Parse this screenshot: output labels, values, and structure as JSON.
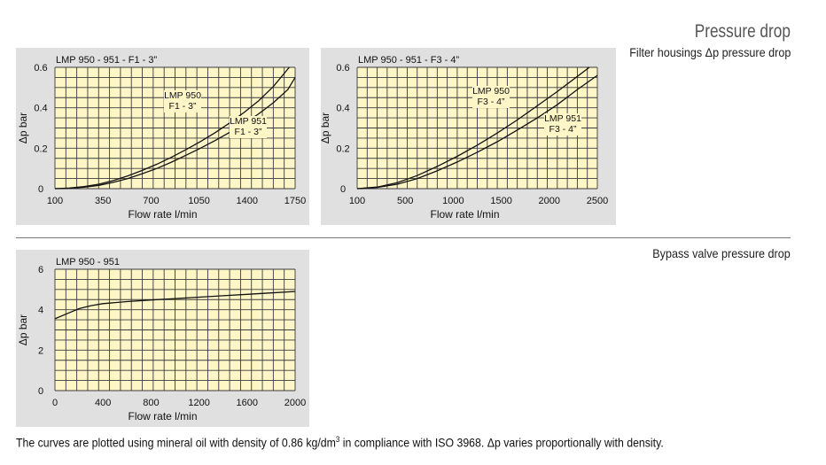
{
  "header": {
    "title": "Pressure drop",
    "subtitle": "Filter housings Δp pressure drop"
  },
  "bypass_label": "Bypass valve pressure drop",
  "footnote": {
    "before": "The curves are plotted using mineral oil with density of 0.86 kg/dm",
    "sup": "3",
    "after": " in compliance with ISO 3968. Δp varies proportionally with density."
  },
  "chart_data": [
    {
      "type": "line",
      "title": "LMP 950 - 951 - F1 - 3”",
      "xlabel": "Flow rate l/min",
      "ylabel": "Δp bar",
      "xlim": [
        100,
        1750
      ],
      "ylim": [
        0,
        0.6
      ],
      "x_ticks": [
        "100",
        "350",
        "700",
        "1050",
        "1400",
        "1750"
      ],
      "y_ticks": [
        "0",
        "0.2",
        "0.4",
        "0.6"
      ],
      "grid": true,
      "series": [
        {
          "name": "LMP 950 F1 - 3”",
          "label_lines": [
            "LMP 950",
            "F1 - 3”"
          ],
          "x": [
            100,
            200,
            300,
            400,
            500,
            600,
            700,
            800,
            900,
            1000,
            1100,
            1200,
            1300,
            1400,
            1500,
            1600,
            1710
          ],
          "y": [
            0,
            0.003,
            0.01,
            0.022,
            0.04,
            0.063,
            0.09,
            0.121,
            0.155,
            0.193,
            0.233,
            0.277,
            0.325,
            0.377,
            0.435,
            0.505,
            0.6
          ]
        },
        {
          "name": "LMP 951 F1 - 3”",
          "label_lines": [
            "LMP 951",
            "F1 - 3”"
          ],
          "x": [
            100,
            200,
            300,
            400,
            500,
            600,
            700,
            800,
            900,
            1000,
            1100,
            1200,
            1300,
            1400,
            1500,
            1600,
            1700,
            1750
          ],
          "y": [
            0,
            0.002,
            0.007,
            0.016,
            0.031,
            0.05,
            0.074,
            0.1,
            0.131,
            0.165,
            0.2,
            0.238,
            0.278,
            0.322,
            0.37,
            0.425,
            0.49,
            0.55
          ]
        }
      ]
    },
    {
      "type": "line",
      "title": "LMP 950 - 951 - F3 - 4”",
      "xlabel": "Flow rate l/min",
      "ylabel": "Δp bar",
      "xlim": [
        100,
        2500
      ],
      "ylim": [
        0,
        0.6
      ],
      "x_ticks": [
        "100",
        "500",
        "1000",
        "1500",
        "2000",
        "2500"
      ],
      "y_ticks": [
        "0",
        "0.2",
        "0.4",
        "0.6"
      ],
      "grid": true,
      "series": [
        {
          "name": "LMP 950 F3 - 4”",
          "label_lines": [
            "LMP 950",
            "F3 - 4”"
          ],
          "x": [
            100,
            300,
            500,
            700,
            900,
            1100,
            1300,
            1500,
            1700,
            1900,
            2100,
            2300,
            2420
          ],
          "y": [
            0,
            0.008,
            0.03,
            0.065,
            0.11,
            0.16,
            0.215,
            0.275,
            0.34,
            0.41,
            0.48,
            0.555,
            0.6
          ]
        },
        {
          "name": "LMP 951 F3 - 4”",
          "label_lines": [
            "LMP 951",
            "F3 - 4”"
          ],
          "x": [
            100,
            300,
            500,
            700,
            900,
            1100,
            1300,
            1500,
            1700,
            1900,
            2100,
            2300,
            2500
          ],
          "y": [
            0,
            0.006,
            0.022,
            0.05,
            0.088,
            0.132,
            0.18,
            0.232,
            0.29,
            0.35,
            0.415,
            0.49,
            0.56
          ]
        }
      ]
    },
    {
      "type": "line",
      "title": "LMP 950 - 951",
      "xlabel": "Flow rate l/min",
      "ylabel": "Δp bar",
      "xlim": [
        0,
        2000
      ],
      "ylim": [
        0,
        6
      ],
      "x_ticks": [
        "0",
        "400",
        "800",
        "1200",
        "1600",
        "2000"
      ],
      "y_ticks": [
        "0",
        "2",
        "4",
        "6"
      ],
      "grid": true,
      "series": [
        {
          "x": [
            0,
            100,
            200,
            300,
            400,
            600,
            800,
            1000,
            1200,
            1400,
            1600,
            1800,
            2000
          ],
          "y": [
            3.55,
            3.8,
            4.05,
            4.2,
            4.3,
            4.4,
            4.48,
            4.55,
            4.62,
            4.69,
            4.76,
            4.83,
            4.9
          ]
        }
      ]
    }
  ]
}
